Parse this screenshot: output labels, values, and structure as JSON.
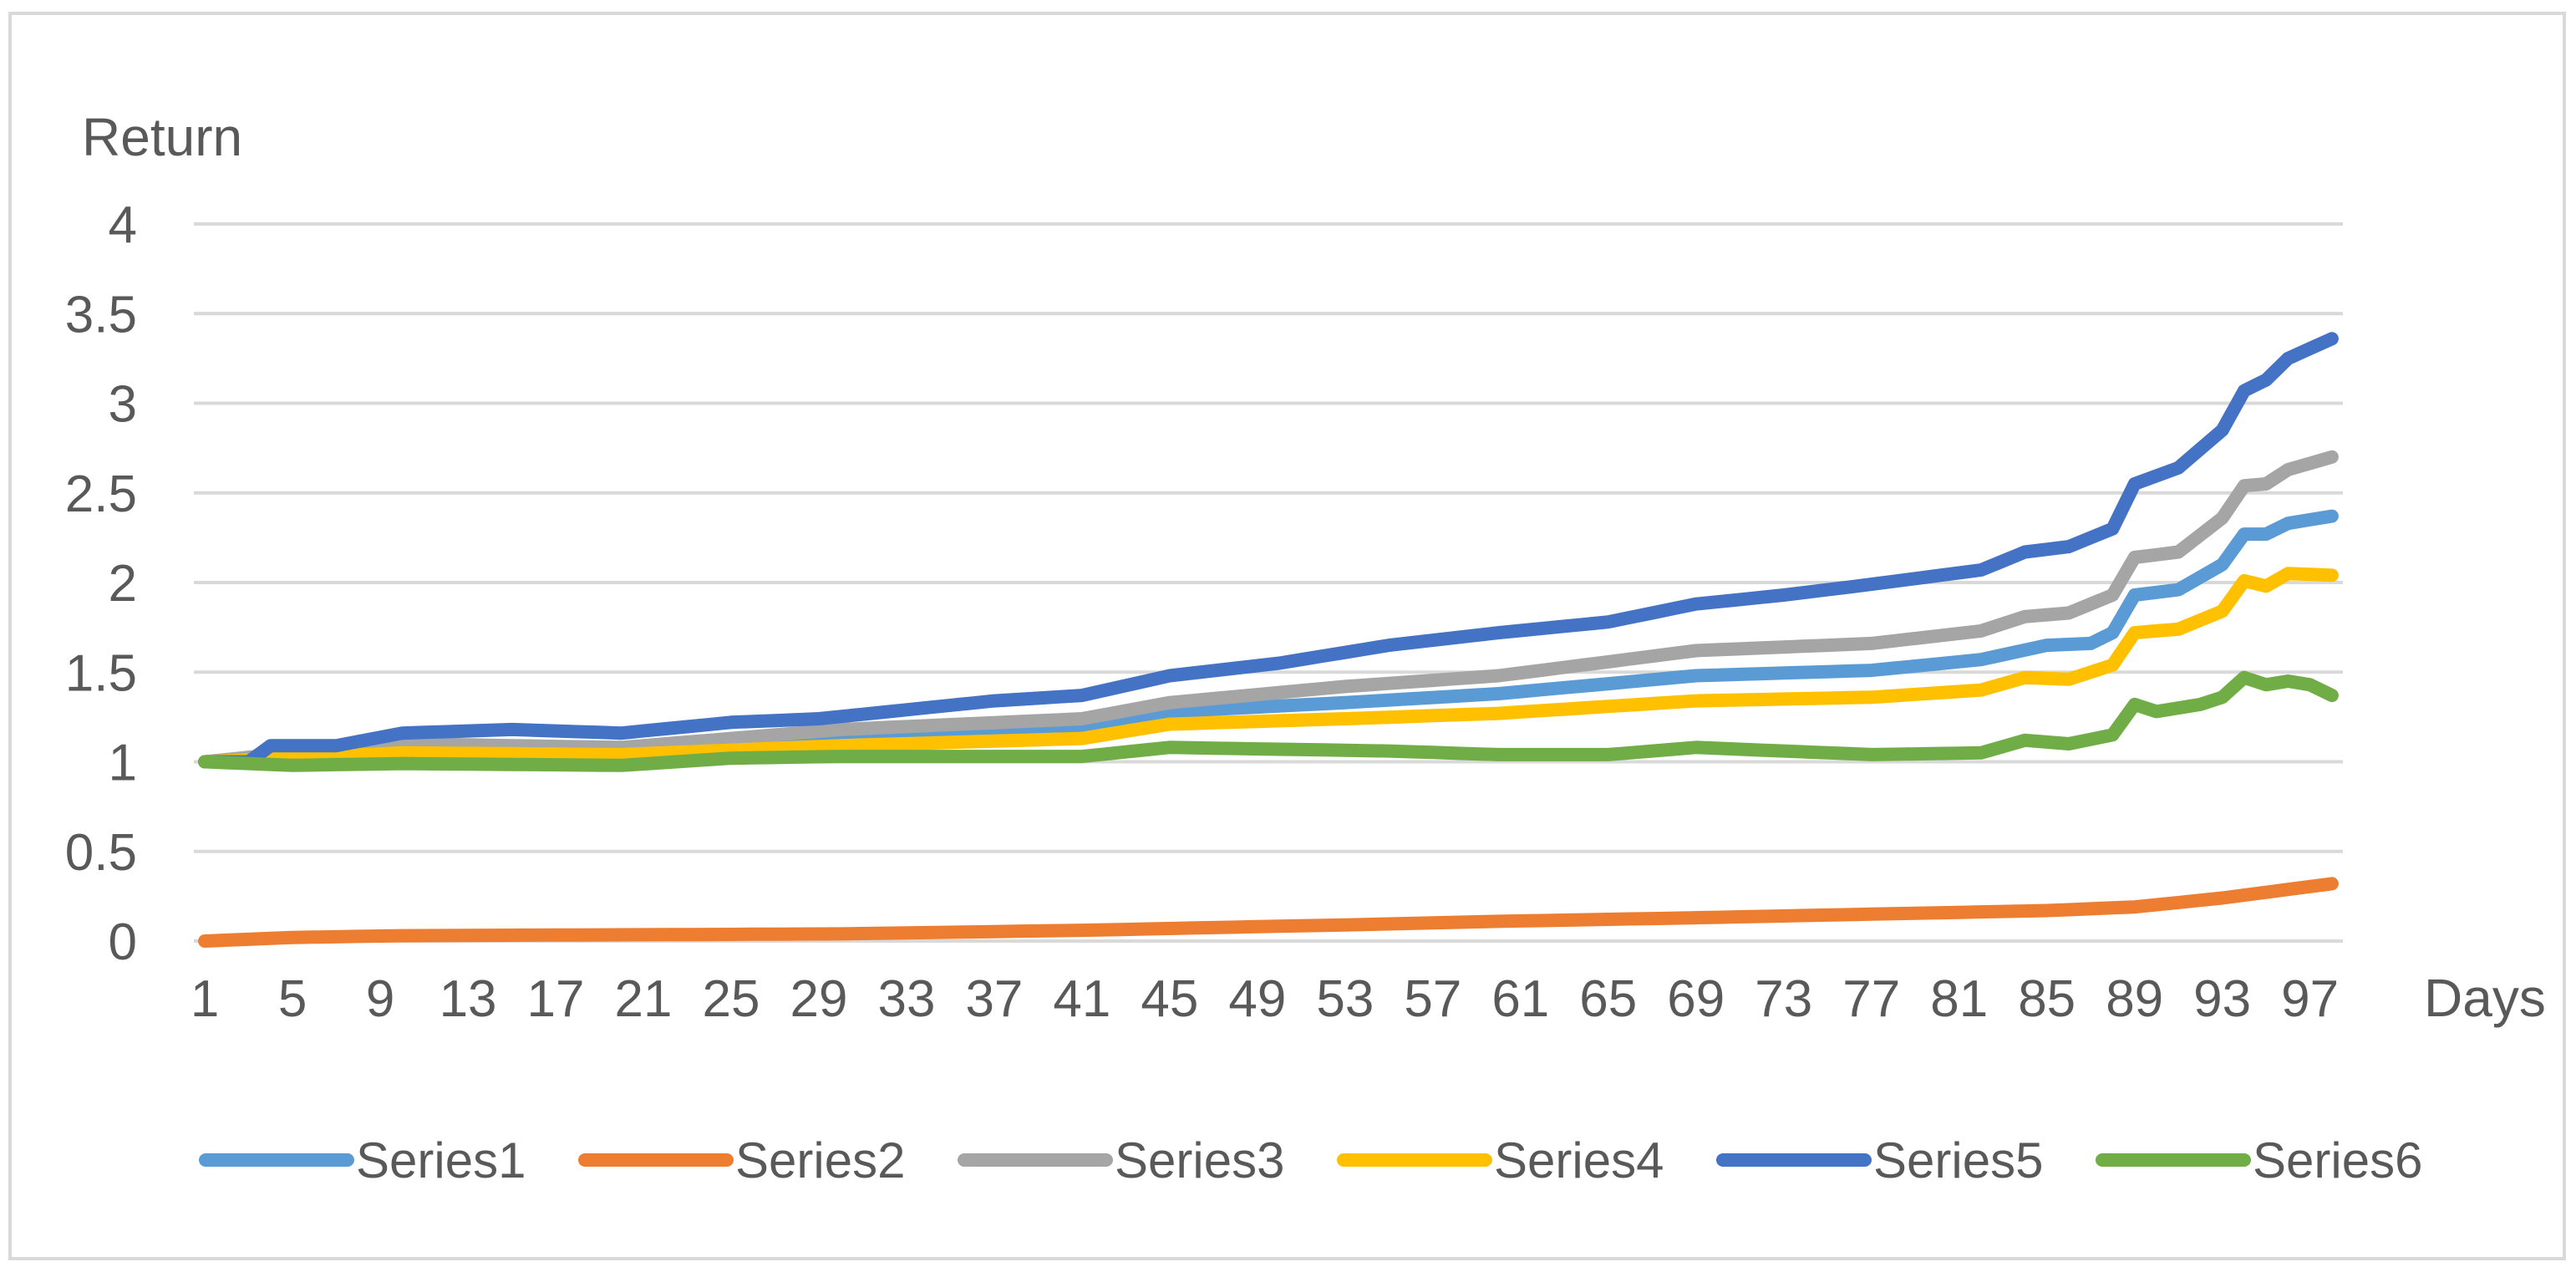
{
  "chart_data": {
    "type": "line",
    "title": "",
    "ylabel": "Return",
    "xlabel": "Days",
    "ylim": [
      0,
      4
    ],
    "yticks": [
      "0",
      "0.5",
      "1",
      "1.5",
      "2",
      "2.5",
      "3",
      "3.5",
      "4"
    ],
    "x_tick_days": [
      1,
      5,
      9,
      13,
      17,
      21,
      25,
      29,
      33,
      37,
      41,
      45,
      49,
      53,
      57,
      61,
      65,
      69,
      73,
      77,
      81,
      85,
      89,
      93,
      97
    ],
    "x_tick_labels": [
      "1",
      "5",
      "9",
      "13",
      "17",
      "21",
      "25",
      "29",
      "33",
      "37",
      "41",
      "45",
      "49",
      "53",
      "57",
      "61",
      "65",
      "69",
      "73",
      "77",
      "81",
      "85",
      "89",
      "93",
      "97"
    ],
    "x_count": 98,
    "grid": true,
    "legend_position": "bottom",
    "series": [
      {
        "name": "Series1",
        "color": "#5b9bd5",
        "anchors": [
          [
            1,
            1.0
          ],
          [
            5,
            1.03
          ],
          [
            10,
            1.07
          ],
          [
            20,
            1.06
          ],
          [
            30,
            1.12
          ],
          [
            41,
            1.18
          ],
          [
            45,
            1.28
          ],
          [
            53,
            1.33
          ],
          [
            60,
            1.38
          ],
          [
            69,
            1.48
          ],
          [
            77,
            1.51
          ],
          [
            82,
            1.57
          ],
          [
            85,
            1.65
          ],
          [
            87,
            1.66
          ],
          [
            88,
            1.72
          ],
          [
            89,
            1.93
          ],
          [
            91,
            1.96
          ],
          [
            93,
            2.1
          ],
          [
            94,
            2.27
          ],
          [
            95,
            2.27
          ],
          [
            96,
            2.33
          ],
          [
            98,
            2.37
          ]
        ]
      },
      {
        "name": "Series2",
        "color": "#ed7d31",
        "anchors": [
          [
            1,
            0.0
          ],
          [
            5,
            0.02
          ],
          [
            10,
            0.03
          ],
          [
            20,
            0.035
          ],
          [
            30,
            0.04
          ],
          [
            41,
            0.06
          ],
          [
            53,
            0.09
          ],
          [
            60,
            0.11
          ],
          [
            69,
            0.13
          ],
          [
            77,
            0.15
          ],
          [
            85,
            0.17
          ],
          [
            89,
            0.19
          ],
          [
            93,
            0.24
          ],
          [
            98,
            0.32
          ]
        ]
      },
      {
        "name": "Series3",
        "color": "#a5a5a5",
        "anchors": [
          [
            1,
            1.0
          ],
          [
            5,
            1.05
          ],
          [
            10,
            1.1
          ],
          [
            20,
            1.08
          ],
          [
            30,
            1.18
          ],
          [
            41,
            1.24
          ],
          [
            45,
            1.33
          ],
          [
            53,
            1.42
          ],
          [
            60,
            1.48
          ],
          [
            69,
            1.62
          ],
          [
            77,
            1.66
          ],
          [
            82,
            1.73
          ],
          [
            84,
            1.81
          ],
          [
            86,
            1.83
          ],
          [
            88,
            1.93
          ],
          [
            89,
            2.14
          ],
          [
            91,
            2.17
          ],
          [
            93,
            2.36
          ],
          [
            94,
            2.54
          ],
          [
            95,
            2.55
          ],
          [
            96,
            2.63
          ],
          [
            98,
            2.7
          ]
        ]
      },
      {
        "name": "Series4",
        "color": "#ffc000",
        "anchors": [
          [
            1,
            1.0
          ],
          [
            5,
            1.02
          ],
          [
            10,
            1.05
          ],
          [
            20,
            1.04
          ],
          [
            30,
            1.09
          ],
          [
            41,
            1.13
          ],
          [
            45,
            1.21
          ],
          [
            53,
            1.24
          ],
          [
            60,
            1.27
          ],
          [
            69,
            1.34
          ],
          [
            77,
            1.36
          ],
          [
            82,
            1.4
          ],
          [
            84,
            1.47
          ],
          [
            86,
            1.46
          ],
          [
            88,
            1.54
          ],
          [
            89,
            1.72
          ],
          [
            91,
            1.74
          ],
          [
            93,
            1.84
          ],
          [
            94,
            2.01
          ],
          [
            95,
            1.98
          ],
          [
            96,
            2.05
          ],
          [
            98,
            2.04
          ]
        ]
      },
      {
        "name": "Series5",
        "color": "#4472c4",
        "anchors": [
          [
            1,
            1.0
          ],
          [
            3,
            1.0
          ],
          [
            4,
            1.09
          ],
          [
            7,
            1.09
          ],
          [
            10,
            1.16
          ],
          [
            15,
            1.18
          ],
          [
            20,
            1.16
          ],
          [
            25,
            1.22
          ],
          [
            29,
            1.24
          ],
          [
            33,
            1.29
          ],
          [
            37,
            1.34
          ],
          [
            41,
            1.37
          ],
          [
            45,
            1.48
          ],
          [
            50,
            1.55
          ],
          [
            55,
            1.65
          ],
          [
            60,
            1.72
          ],
          [
            65,
            1.78
          ],
          [
            69,
            1.88
          ],
          [
            73,
            1.93
          ],
          [
            77,
            1.99
          ],
          [
            82,
            2.07
          ],
          [
            84,
            2.17
          ],
          [
            86,
            2.2
          ],
          [
            88,
            2.3
          ],
          [
            89,
            2.55
          ],
          [
            91,
            2.64
          ],
          [
            93,
            2.85
          ],
          [
            94,
            3.07
          ],
          [
            95,
            3.13
          ],
          [
            96,
            3.25
          ],
          [
            98,
            3.36
          ]
        ]
      },
      {
        "name": "Series6",
        "color": "#70ad47",
        "anchors": [
          [
            1,
            1.0
          ],
          [
            5,
            0.98
          ],
          [
            10,
            0.99
          ],
          [
            20,
            0.98
          ],
          [
            25,
            1.02
          ],
          [
            30,
            1.03
          ],
          [
            41,
            1.03
          ],
          [
            45,
            1.08
          ],
          [
            50,
            1.07
          ],
          [
            55,
            1.06
          ],
          [
            60,
            1.04
          ],
          [
            65,
            1.04
          ],
          [
            69,
            1.08
          ],
          [
            77,
            1.04
          ],
          [
            82,
            1.05
          ],
          [
            84,
            1.12
          ],
          [
            86,
            1.1
          ],
          [
            88,
            1.15
          ],
          [
            89,
            1.32
          ],
          [
            90,
            1.28
          ],
          [
            92,
            1.32
          ],
          [
            93,
            1.36
          ],
          [
            94,
            1.47
          ],
          [
            95,
            1.43
          ],
          [
            96,
            1.45
          ],
          [
            97,
            1.43
          ],
          [
            98,
            1.37
          ]
        ]
      }
    ]
  }
}
